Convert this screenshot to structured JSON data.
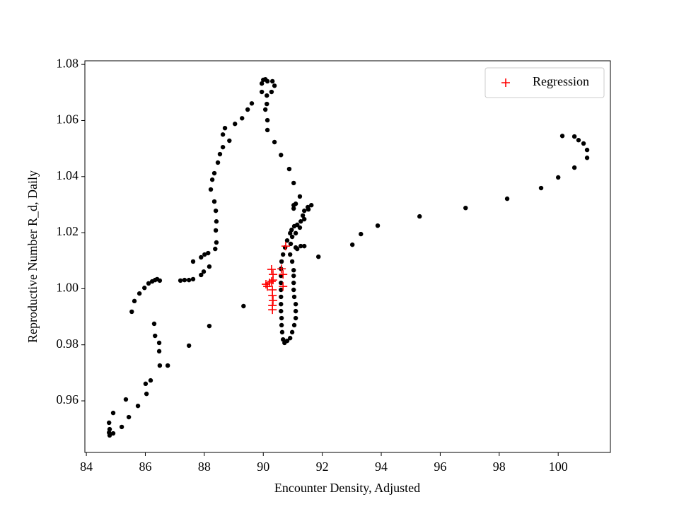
{
  "chart_data": {
    "type": "scatter",
    "xlabel": "Encounter Density, Adjusted",
    "ylabel": "Reproductive Number R_d, Daily",
    "xlim": [
      83.95,
      101.77
    ],
    "ylim": [
      0.9416,
      1.0813
    ],
    "xticks": [
      84,
      86,
      88,
      90,
      92,
      94,
      96,
      98,
      100
    ],
    "yticks": [
      0.96,
      0.98,
      {
        "value": 1,
        "label": "1.00"
      },
      1.02,
      1.04,
      1.06,
      1.08
    ],
    "grid": false,
    "legend": "upper right",
    "series": [
      {
        "color": "#000000",
        "marker": "o",
        "x": [
          84.79,
          84.77,
          84.79,
          84.77,
          84.91,
          84.91,
          85.2,
          85.44,
          85.34,
          85.75,
          86.04,
          86.01,
          86.18,
          86.49,
          86.76,
          86.47,
          86.47,
          86.33,
          86.3,
          87.48,
          88.17,
          89.33,
          85.54,
          85.63,
          85.8,
          85.97,
          86.11,
          86.23,
          86.33,
          86.4,
          86.49,
          87.19,
          87.33,
          87.48,
          87.62,
          87.89,
          87.98,
          88.17,
          87.62,
          87.89,
          88.01,
          88.13,
          88.37,
          88.41,
          88.39,
          88.41,
          88.39,
          88.34,
          88.22,
          88.27,
          88.34,
          88.46,
          88.53,
          88.63,
          88.63,
          88.7,
          88.85,
          89.04,
          89.28,
          89.47,
          89.61,
          89.95,
          89.95,
          90.0,
          90.07,
          90.14,
          90.31,
          90.38,
          90.28,
          90.12,
          90.12,
          90.07,
          90.14,
          90.14,
          90.38,
          90.6,
          90.88,
          91.03,
          91.24,
          91.03,
          91.1,
          91.03,
          90.91,
          90.96,
          91.05,
          91.15,
          91.27,
          91.34,
          91.39,
          91.51,
          91.63,
          91.53,
          91.39,
          91.24,
          91.1,
          90.98,
          90.81,
          90.74,
          90.67,
          90.62,
          90.6,
          90.6,
          90.6,
          90.6,
          90.6,
          90.6,
          90.6,
          90.62,
          90.62,
          90.64,
          90.67,
          90.72,
          90.81,
          90.91,
          90.98,
          91.05,
          91.1,
          91.1,
          91.1,
          91.05,
          91.03,
          91.03,
          91.03,
          91.03,
          90.98,
          90.91,
          91.1,
          91.27,
          91.39,
          91.15,
          90.93,
          91.87,
          93.02,
          93.31,
          93.88,
          95.3,
          96.86,
          98.27,
          99.42,
          100.0,
          100.55,
          100.14,
          100.55,
          100.69,
          100.86,
          100.98,
          100.98
        ],
        "values": [
          0.9477,
          0.9487,
          0.9499,
          0.9522,
          0.9557,
          0.9484,
          0.9507,
          0.9542,
          0.9605,
          0.9582,
          0.9625,
          0.9661,
          0.9673,
          0.9726,
          0.9726,
          0.9777,
          0.9807,
          0.9832,
          0.9875,
          0.9797,
          0.9867,
          0.9938,
          0.9918,
          0.9956,
          0.9983,
          1.0003,
          1.0019,
          1.0026,
          1.0031,
          1.0034,
          1.0029,
          1.0029,
          1.0031,
          1.0031,
          1.0034,
          1.0049,
          1.0061,
          1.0079,
          1.0097,
          1.0112,
          1.0122,
          1.0127,
          1.0142,
          1.0165,
          1.0208,
          1.024,
          1.0278,
          1.0311,
          1.0354,
          1.0389,
          1.0412,
          1.045,
          1.048,
          1.0505,
          1.055,
          1.0573,
          1.0528,
          1.0588,
          1.0608,
          1.0639,
          1.0661,
          1.0702,
          1.0732,
          1.0745,
          1.0747,
          1.074,
          1.074,
          1.0724,
          1.0702,
          1.0689,
          1.0659,
          1.0639,
          1.0601,
          1.0566,
          1.0523,
          1.0477,
          1.0427,
          1.0377,
          1.0329,
          1.0298,
          1.0303,
          1.0286,
          1.0198,
          1.021,
          1.0223,
          1.0228,
          1.024,
          1.0261,
          1.0278,
          1.0291,
          1.0298,
          1.0283,
          1.0248,
          1.0218,
          1.0198,
          1.0185,
          1.0172,
          1.0147,
          1.0122,
          1.0097,
          1.0071,
          1.0046,
          1.0021,
          0.9996,
          0.9971,
          0.9945,
          0.992,
          0.9895,
          0.987,
          0.9845,
          0.9819,
          0.9807,
          0.9814,
          0.9824,
          0.9845,
          0.987,
          0.9895,
          0.992,
          0.9945,
          0.9971,
          0.9996,
          1.0021,
          1.0046,
          1.0066,
          1.0097,
          1.0122,
          1.0147,
          1.0152,
          1.0152,
          1.0142,
          1.016,
          1.0114,
          1.0157,
          1.0195,
          1.0225,
          1.0258,
          1.0288,
          1.0321,
          1.0359,
          1.0397,
          1.0432,
          1.0545,
          1.0543,
          1.053,
          1.0518,
          1.0495,
          1.0467
        ]
      },
      {
        "name": "Regression",
        "color": "#ff0000",
        "marker": "+",
        "x": [
          90.09,
          90.21,
          90.28,
          90.33,
          90.28,
          90.33,
          90.31,
          90.31,
          90.33,
          90.31,
          90.31,
          90.62,
          90.67,
          90.67,
          90.76,
          90.14
        ],
        "values": [
          1.0016,
          1.0021,
          1.0026,
          1.0031,
          1.0069,
          1.0051,
          0.9996,
          0.9976,
          0.9958,
          0.994,
          0.9925,
          1.0071,
          1.0051,
          1.0008,
          1.0152,
          1.0008
        ]
      }
    ]
  }
}
